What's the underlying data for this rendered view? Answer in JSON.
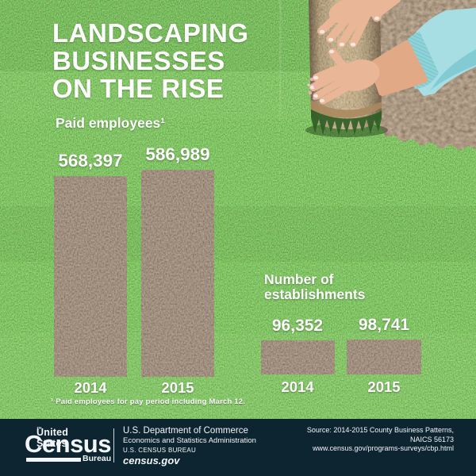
{
  "title": "LANDSCAPING\nBUSINESSES\nON THE RISE",
  "chart_data": [
    {
      "type": "bar",
      "title": "Paid employees¹",
      "categories": [
        "2014",
        "2015"
      ],
      "values": [
        568397,
        586989
      ],
      "values_formatted": [
        "568,397",
        "586,989"
      ],
      "bar_texture": "soil",
      "legend": "none",
      "grid": "off"
    },
    {
      "type": "bar",
      "title": "Number of\nestablishments",
      "categories": [
        "2014",
        "2015"
      ],
      "values": [
        96352,
        98741
      ],
      "values_formatted": [
        "96,352",
        "98,741"
      ],
      "bar_texture": "soil",
      "legend": "none",
      "grid": "off"
    }
  ],
  "footnote": "¹ Paid employees for pay period including March 12.",
  "footer": {
    "logo": {
      "top": "United States",
      "tm": "™",
      "main": "Census",
      "sub": "Bureau"
    },
    "dept": "U.S. Department of Commerce",
    "admin": "Economics and Statistics Administration",
    "bureau": "U.S. CENSUS BUREAU",
    "site": "census.gov",
    "source": "Source: 2014-2015 County Business Patterns,\nNAICS 56173\nwww.census.gov/programs-surveys/cbp.html"
  },
  "colors": {
    "grass_green": "#3f8634",
    "soil_bar": "#514134",
    "sod_roll": "#81643d",
    "footer_navy": "#0d2431",
    "text_white": "#ffffff",
    "sleeve_turquoise": "#a6dee3",
    "skin": "#e9b697",
    "flower_pink": "#f0a8c4"
  }
}
